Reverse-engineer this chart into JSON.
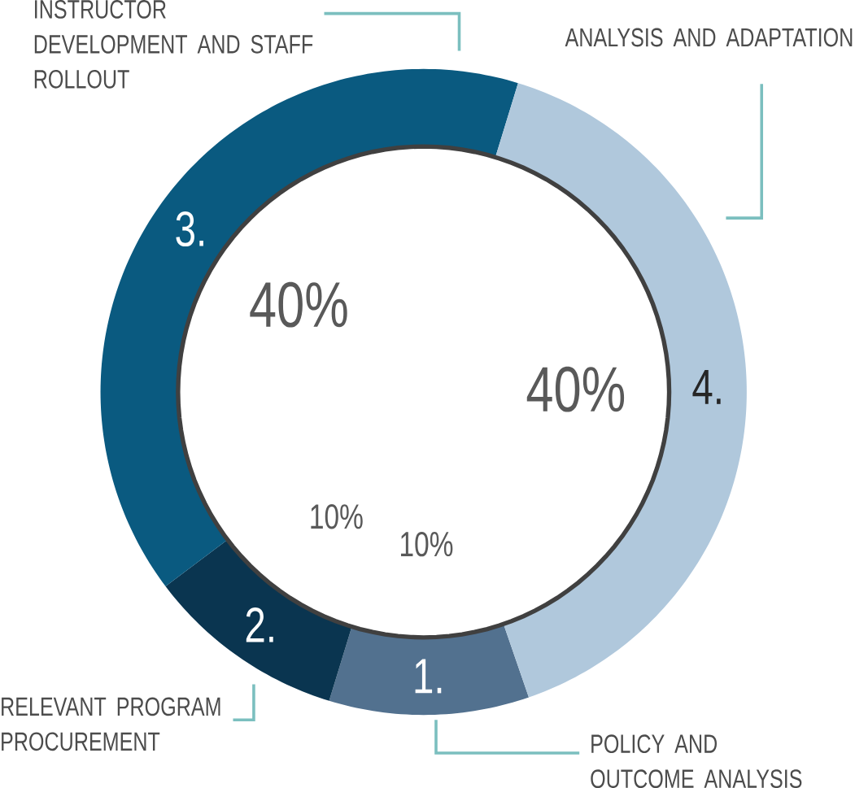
{
  "chart_data": {
    "type": "donut",
    "categories": [
      "POLICY AND OUTCOME ANALYSIS",
      "RELEVANT PROGRAM PROCUREMENT",
      "INSTRUCTOR DEVELOPMENT AND STAFF ROLLOUT",
      "ANALYSIS AND ADAPTATION"
    ],
    "values": [
      10,
      10,
      40,
      40
    ],
    "value_labels": [
      "10%",
      "10%",
      "40%",
      "40%"
    ],
    "colors": [
      "#52718f",
      "#0a3550",
      "#0a5a80",
      "#b0c8dc"
    ],
    "annotations": [
      "1.",
      "2.",
      "3.",
      "4."
    ]
  }
}
